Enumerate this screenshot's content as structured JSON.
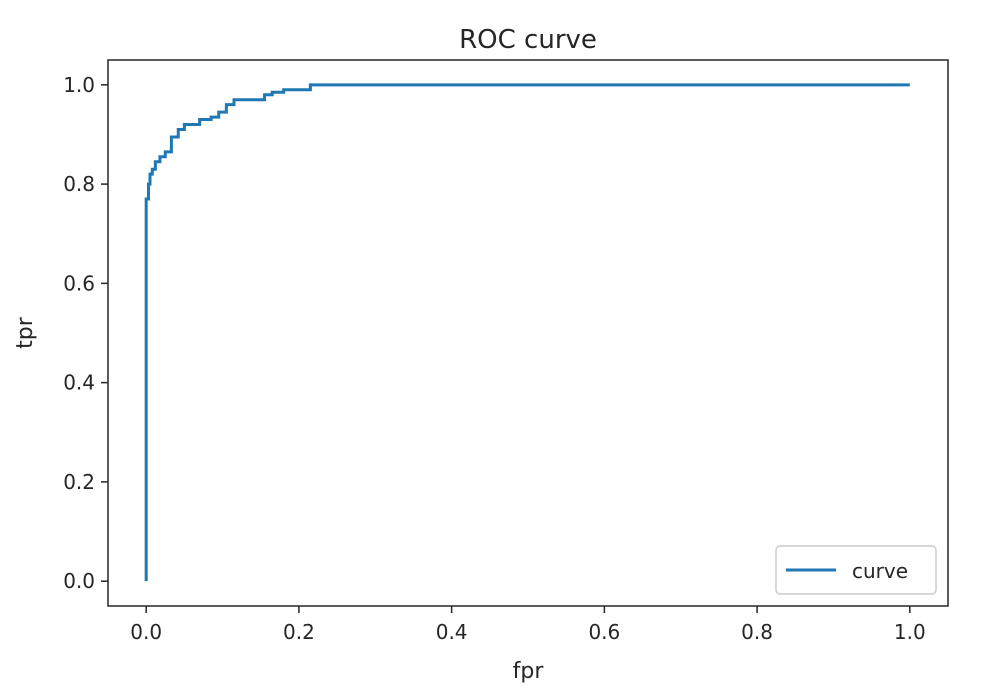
{
  "chart_data": {
    "type": "line",
    "title": "ROC curve",
    "xlabel": "fpr",
    "ylabel": "tpr",
    "xlim": [
      -0.05,
      1.05
    ],
    "ylim": [
      -0.05,
      1.05
    ],
    "xticks": [
      0.0,
      0.2,
      0.4,
      0.6,
      0.8,
      1.0
    ],
    "xtick_labels": [
      "0.0",
      "0.2",
      "0.4",
      "0.6",
      "0.8",
      "1.0"
    ],
    "yticks": [
      0.0,
      0.2,
      0.4,
      0.6,
      0.8,
      1.0
    ],
    "ytick_labels": [
      "0.0",
      "0.2",
      "0.4",
      "0.6",
      "0.8",
      "1.0"
    ],
    "grid": false,
    "legend": {
      "position": "lower-right",
      "entries": [
        "curve"
      ]
    },
    "series": [
      {
        "name": "curve",
        "color": "#1f77b4",
        "step": true,
        "x": [
          0.0,
          0.0,
          0.003,
          0.003,
          0.005,
          0.005,
          0.008,
          0.008,
          0.012,
          0.012,
          0.018,
          0.018,
          0.025,
          0.025,
          0.033,
          0.033,
          0.042,
          0.042,
          0.05,
          0.05,
          0.07,
          0.07,
          0.085,
          0.085,
          0.095,
          0.095,
          0.105,
          0.105,
          0.115,
          0.115,
          0.155,
          0.155,
          0.165,
          0.165,
          0.18,
          0.18,
          0.215,
          0.215,
          1.0
        ],
        "y": [
          0.0,
          0.77,
          0.77,
          0.8,
          0.8,
          0.82,
          0.82,
          0.83,
          0.83,
          0.845,
          0.845,
          0.855,
          0.855,
          0.865,
          0.865,
          0.895,
          0.895,
          0.91,
          0.91,
          0.92,
          0.92,
          0.93,
          0.93,
          0.935,
          0.935,
          0.945,
          0.945,
          0.96,
          0.96,
          0.97,
          0.97,
          0.98,
          0.98,
          0.985,
          0.985,
          0.99,
          0.99,
          1.0,
          1.0
        ]
      }
    ]
  }
}
